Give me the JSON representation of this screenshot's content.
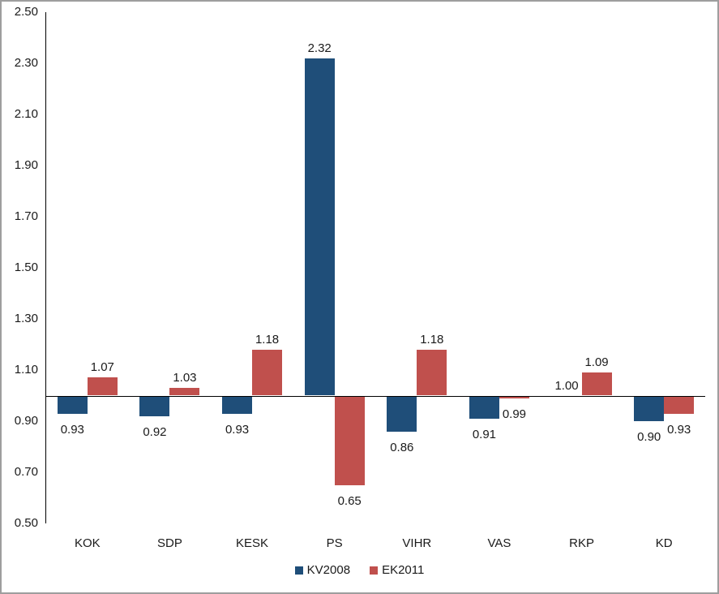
{
  "chart_data": {
    "type": "bar",
    "title": "",
    "categories": [
      "KOK",
      "SDP",
      "KESK",
      "PS",
      "VIHR",
      "VAS",
      "RKP",
      "KD"
    ],
    "series": [
      {
        "name": "KV2008",
        "color": "#1F4E79",
        "values": [
          0.93,
          0.92,
          0.93,
          2.32,
          0.86,
          0.91,
          1.0,
          0.9
        ]
      },
      {
        "name": "EK2011",
        "color": "#C0504D",
        "values": [
          1.07,
          1.03,
          1.18,
          0.65,
          1.18,
          0.99,
          1.09,
          0.93
        ]
      }
    ],
    "ylim": [
      0.5,
      2.5
    ],
    "ytick_step": 0.2,
    "ytick_labels": [
      "2.50",
      "2.30",
      "2.10",
      "1.90",
      "1.70",
      "1.50",
      "1.30",
      "1.10",
      "0.90",
      "0.70",
      "0.50"
    ],
    "baseline": 1.0,
    "grid": false,
    "data_labels": true,
    "data_label_format": "0.00",
    "legend_position": "bottom",
    "xlabel": "",
    "ylabel": ""
  },
  "colors": {
    "background": "#FFFFFF",
    "axis_line": "#000000",
    "text": "#1A1A1A",
    "frame_border": "#9E9E9E",
    "series_blue": "#1F4E79",
    "series_red": "#C0504D"
  }
}
